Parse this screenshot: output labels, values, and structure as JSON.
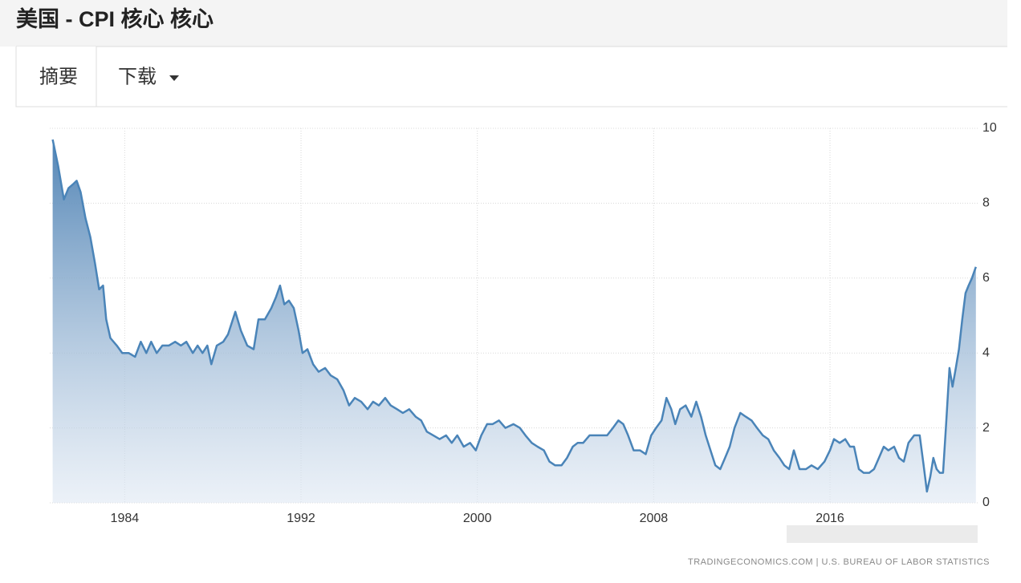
{
  "header": {
    "title": "美国 - CPI 核心 核心"
  },
  "tabs": [
    "摘要",
    "下载"
  ],
  "chart_data": {
    "type": "area",
    "color": "#4a84b8",
    "x": [
      1980.73,
      1980.98,
      1981.24,
      1981.45,
      1981.64,
      1981.82,
      1982.0,
      1982.22,
      1982.44,
      1982.65,
      1982.84,
      1983.02,
      1983.16,
      1983.35,
      1983.64,
      1983.89,
      1984.18,
      1984.47,
      1984.73,
      1984.98,
      1985.2,
      1985.45,
      1985.71,
      1986.0,
      1986.29,
      1986.55,
      1986.8,
      1987.09,
      1987.31,
      1987.53,
      1987.75,
      1987.93,
      1988.18,
      1988.47,
      1988.69,
      1989.02,
      1989.27,
      1989.56,
      1989.85,
      1990.07,
      1990.36,
      1990.65,
      1990.87,
      1991.05,
      1991.24,
      1991.45,
      1991.67,
      1991.89,
      1992.07,
      1992.29,
      1992.55,
      1992.8,
      1993.09,
      1993.35,
      1993.64,
      1993.93,
      1994.18,
      1994.44,
      1994.73,
      1995.02,
      1995.27,
      1995.53,
      1995.82,
      1996.07,
      1996.36,
      1996.62,
      1996.91,
      1997.2,
      1997.45,
      1997.71,
      1998.0,
      1998.29,
      1998.58,
      1998.84,
      1999.09,
      1999.38,
      1999.67,
      1999.93,
      2000.18,
      2000.44,
      2000.69,
      2000.98,
      2001.27,
      2001.64,
      2001.93,
      2002.18,
      2002.47,
      2002.73,
      2003.02,
      2003.27,
      2003.53,
      2003.82,
      2004.07,
      2004.33,
      2004.55,
      2004.8,
      2005.09,
      2005.38,
      2005.64,
      2005.89,
      2006.15,
      2006.4,
      2006.62,
      2006.84,
      2007.09,
      2007.38,
      2007.64,
      2007.89,
      2008.11,
      2008.36,
      2008.58,
      2008.8,
      2008.98,
      2009.2,
      2009.45,
      2009.71,
      2009.93,
      2010.15,
      2010.36,
      2010.58,
      2010.8,
      2011.02,
      2011.24,
      2011.45,
      2011.67,
      2011.93,
      2012.18,
      2012.44,
      2012.69,
      2012.95,
      2013.2,
      2013.45,
      2013.71,
      2013.93,
      2014.15,
      2014.36,
      2014.62,
      2014.91,
      2015.16,
      2015.45,
      2015.75,
      2016.0,
      2016.18,
      2016.44,
      2016.69,
      2016.91,
      2017.09,
      2017.31,
      2017.53,
      2017.78,
      2018.0,
      2018.22,
      2018.44,
      2018.65,
      2018.91,
      2019.13,
      2019.35,
      2019.56,
      2019.82,
      2020.07,
      2020.25,
      2020.4,
      2020.55,
      2020.69,
      2020.84,
      2020.98,
      2021.13,
      2021.27,
      2021.42,
      2021.56,
      2021.71,
      2021.85,
      2022.0,
      2022.15,
      2022.29,
      2022.44,
      2022.62
    ],
    "values": [
      9.7,
      9.0,
      8.1,
      8.4,
      8.5,
      8.6,
      8.3,
      7.6,
      7.1,
      6.4,
      5.7,
      5.8,
      4.9,
      4.4,
      4.2,
      4.0,
      4.0,
      3.9,
      4.3,
      4.0,
      4.3,
      4.0,
      4.2,
      4.2,
      4.3,
      4.2,
      4.3,
      4.0,
      4.2,
      4.0,
      4.2,
      3.7,
      4.2,
      4.3,
      4.5,
      5.1,
      4.6,
      4.2,
      4.1,
      4.9,
      4.9,
      5.2,
      5.5,
      5.8,
      5.3,
      5.4,
      5.2,
      4.6,
      4.0,
      4.1,
      3.7,
      3.5,
      3.6,
      3.4,
      3.3,
      3.0,
      2.6,
      2.8,
      2.7,
      2.5,
      2.7,
      2.6,
      2.8,
      2.6,
      2.5,
      2.4,
      2.5,
      2.3,
      2.2,
      1.9,
      1.8,
      1.7,
      1.8,
      1.6,
      1.8,
      1.5,
      1.6,
      1.4,
      1.8,
      2.1,
      2.1,
      2.2,
      2.0,
      2.1,
      2.0,
      1.8,
      1.6,
      1.5,
      1.4,
      1.1,
      1.0,
      1.0,
      1.2,
      1.5,
      1.6,
      1.6,
      1.8,
      1.8,
      1.8,
      1.8,
      2.0,
      2.2,
      2.1,
      1.8,
      1.4,
      1.4,
      1.3,
      1.8,
      2.0,
      2.2,
      2.8,
      2.5,
      2.1,
      2.5,
      2.6,
      2.3,
      2.7,
      2.3,
      1.8,
      1.4,
      1.0,
      0.9,
      1.2,
      1.5,
      2.0,
      2.4,
      2.3,
      2.2,
      2.0,
      1.8,
      1.7,
      1.4,
      1.2,
      1.0,
      0.9,
      1.4,
      0.9,
      0.9,
      1.0,
      0.9,
      1.1,
      1.4,
      1.7,
      1.6,
      1.7,
      1.5,
      1.5,
      0.9,
      0.8,
      0.8,
      0.9,
      1.2,
      1.5,
      1.4,
      1.5,
      1.2,
      1.1,
      1.6,
      1.8,
      1.8,
      1.0,
      0.3,
      0.7,
      1.2,
      0.9,
      0.8,
      0.8,
      2.1,
      3.6,
      3.1,
      3.6,
      4.1,
      4.9,
      5.6,
      5.8,
      6.0,
      6.3
    ],
    "xlim": [
      1980.6,
      2022.7
    ],
    "xticks": [
      1984,
      1992,
      2000,
      2008,
      2016
    ],
    "ylim": [
      0,
      10
    ],
    "yticks": [
      0,
      2,
      4,
      6,
      8,
      10
    ],
    "grid": true,
    "source": "TRADINGECONOMICS.COM  |  U.S. BUREAU OF LABOR STATISTICS"
  }
}
